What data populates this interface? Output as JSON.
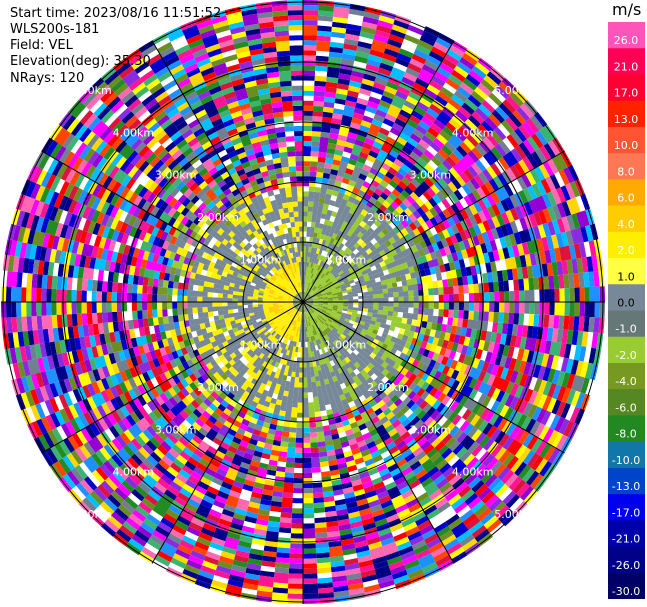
{
  "info": {
    "start_time": "Start time: 2023/08/16 11:51:52",
    "instrument": "WLS200s-181",
    "field": "Field: VEL",
    "elevation": "Elevation(deg): 35.30",
    "nrays": "NRays: 120"
  },
  "chart_data": {
    "type": "heatmap",
    "projection": "polar-ppi",
    "field": "VEL",
    "n_rays": 120,
    "range_ring_labels": [
      "1.00km",
      "2.00km",
      "3.00km",
      "4.00km",
      "5.00km"
    ],
    "colorbar": {
      "unit": "m/s",
      "tick_labels": [
        "26.0",
        "21.0",
        "17.0",
        "13.0",
        "10.0",
        "8.0",
        "6.0",
        "4.0",
        "2.0",
        "1.0",
        "0.0",
        "-1.0",
        "-2.0",
        "-4.0",
        "-6.0",
        "-8.0",
        "-10.0",
        "-13.0",
        "-17.0",
        "-21.0",
        "-26.0",
        "-30.0"
      ],
      "colors": [
        "#ff55bb",
        "#ff0055",
        "#ff0033",
        "#ff2200",
        "#ff5533",
        "#ff7755",
        "#ffaa00",
        "#ffcc00",
        "#ffee00",
        "#ffff44",
        "#778899",
        "#667777",
        "#99cc33",
        "#779922",
        "#558822",
        "#228822",
        "#1177aa",
        "#0044cc",
        "#0000ee",
        "#0000aa",
        "#000088",
        "#000066"
      ]
    },
    "noise_colors": [
      "#ff1493",
      "#ff00ff",
      "#9400d3",
      "#0000cd",
      "#000080",
      "#1e90ff",
      "#00bfff",
      "#ff0000",
      "#ff4500",
      "#ffd700",
      "#ffff00",
      "#228b22",
      "#6b8e23",
      "#ff69b4",
      "#00008b",
      "#708090",
      "#ffffff",
      "#dc143c",
      "#8a2be2",
      "#3cb371"
    ]
  }
}
